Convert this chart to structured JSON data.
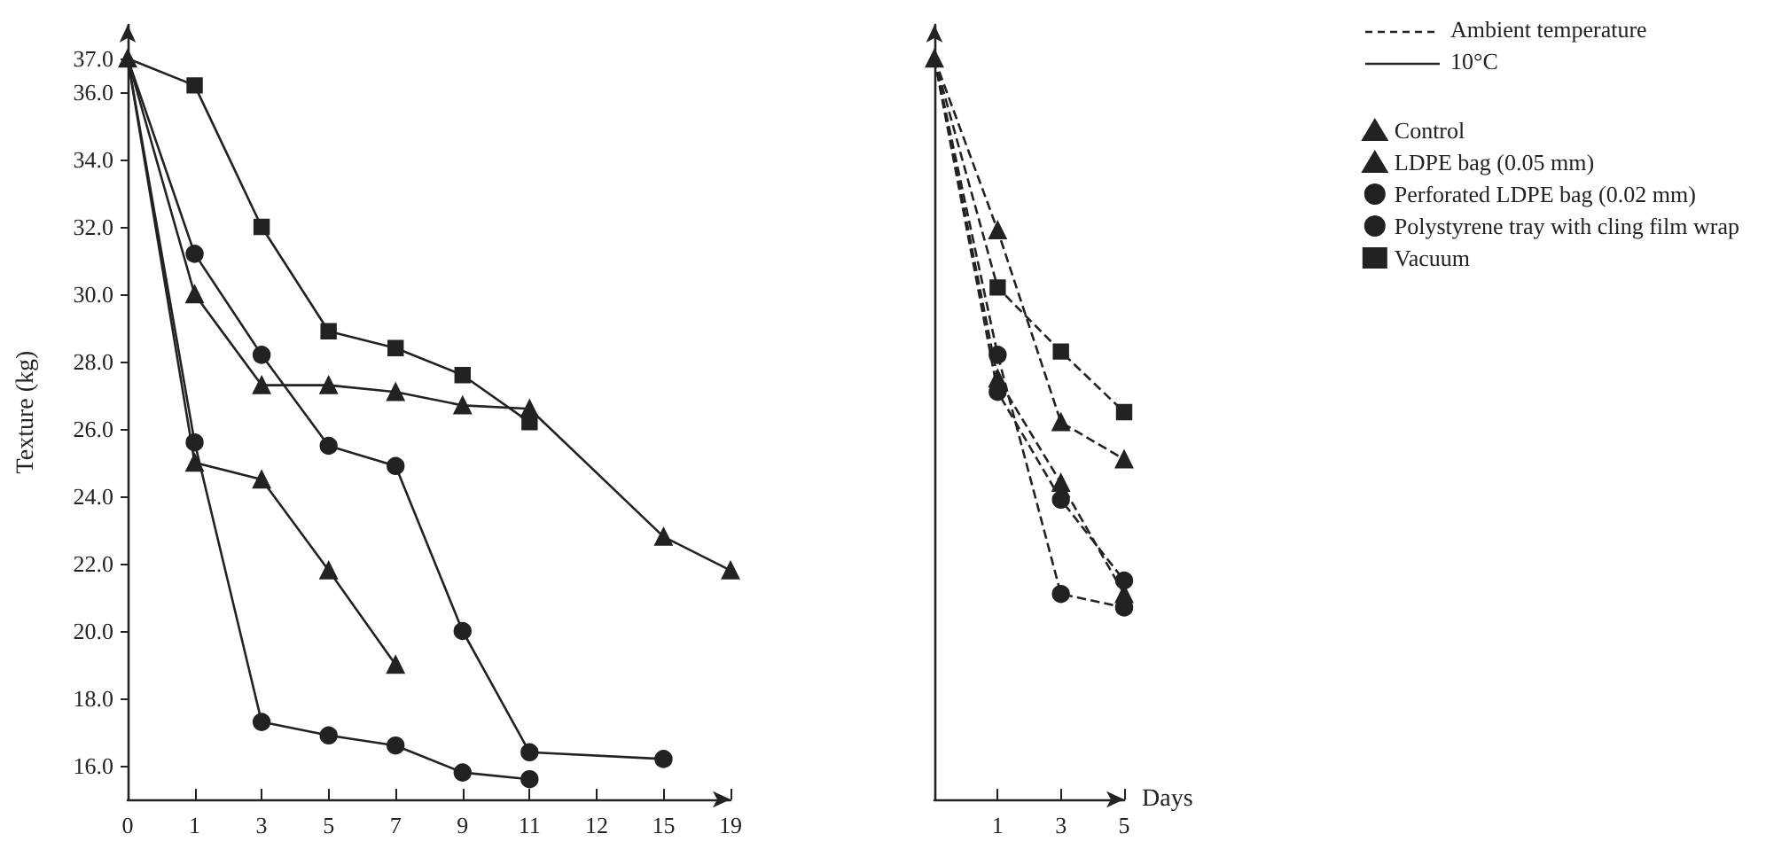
{
  "chart_data": [
    {
      "type": "line",
      "ylabel": "Texture (kg)",
      "categories": [
        "0",
        "1",
        "3",
        "5",
        "7",
        "9",
        "11",
        "12",
        "15",
        "19"
      ],
      "ylim": [
        15,
        38
      ],
      "yticks": [
        {
          "value": 16,
          "label": "16.0"
        },
        {
          "value": 18,
          "label": "18.0"
        },
        {
          "value": 20,
          "label": "20.0"
        },
        {
          "value": 22,
          "label": "22.0"
        },
        {
          "value": 24,
          "label": "24.0"
        },
        {
          "value": 26,
          "label": "26.0"
        },
        {
          "value": 28,
          "label": "28.0"
        },
        {
          "value": 30,
          "label": "30.0"
        },
        {
          "value": 32,
          "label": "32.0"
        },
        {
          "value": 34,
          "label": "34.0"
        },
        {
          "value": 36,
          "label": "36.0"
        },
        {
          "value": 37,
          "label": "37.0"
        }
      ],
      "grid": false,
      "legend": false,
      "line_style": "solid",
      "series": [
        {
          "color": "#222222",
          "marker": "triangle",
          "values": [
            37.0,
            25.0,
            24.5,
            21.8,
            19.0,
            null,
            null,
            null,
            null,
            null
          ]
        },
        {
          "color": "#222222",
          "marker": "triangle",
          "values": [
            37.0,
            30.0,
            27.3,
            27.3,
            27.1,
            26.7,
            26.6,
            null,
            22.8,
            21.8
          ]
        },
        {
          "color": "#222222",
          "marker": "circle",
          "values": [
            37.0,
            25.6,
            17.3,
            16.9,
            16.6,
            15.8,
            15.6,
            null,
            null,
            null
          ]
        },
        {
          "color": "#222222",
          "marker": "circle",
          "values": [
            37.0,
            31.2,
            28.2,
            25.5,
            24.9,
            20.0,
            16.4,
            null,
            16.2,
            null
          ]
        },
        {
          "color": "#222222",
          "marker": "square",
          "values": [
            37.0,
            36.2,
            32.0,
            28.9,
            28.4,
            27.6,
            26.2,
            null,
            null,
            null
          ]
        }
      ]
    },
    {
      "type": "line",
      "xlabel": "Days",
      "categories": [
        null,
        "1",
        "3",
        "5"
      ],
      "ylim": [
        15,
        38
      ],
      "tick_labels": "x",
      "grid": false,
      "legend": "top right",
      "line_style": "dashed",
      "annotations": [
        "Ambient temperature",
        "10°C"
      ],
      "series": [
        {
          "name": "Control",
          "color": "#222222",
          "marker": "triangle",
          "values": [
            37.0,
            27.5,
            24.4,
            21.1
          ]
        },
        {
          "name": "LDPE bag (0.05 mm)",
          "color": "#222222",
          "marker": "triangle",
          "values": [
            37.0,
            31.9,
            26.2,
            25.1
          ]
        },
        {
          "name": "Perforated LDPE bag (0.02 mm)",
          "color": "#222222",
          "marker": "circle",
          "values": [
            37.0,
            27.1,
            23.9,
            21.5
          ]
        },
        {
          "name": "Polystyrene tray with cling film wrap",
          "color": "#222222",
          "marker": "circle",
          "values": [
            37.0,
            28.2,
            21.1,
            20.7
          ]
        },
        {
          "name": "Vacuum",
          "color": "#222222",
          "marker": "square",
          "values": [
            37.0,
            30.2,
            28.3,
            26.5
          ]
        }
      ]
    }
  ]
}
